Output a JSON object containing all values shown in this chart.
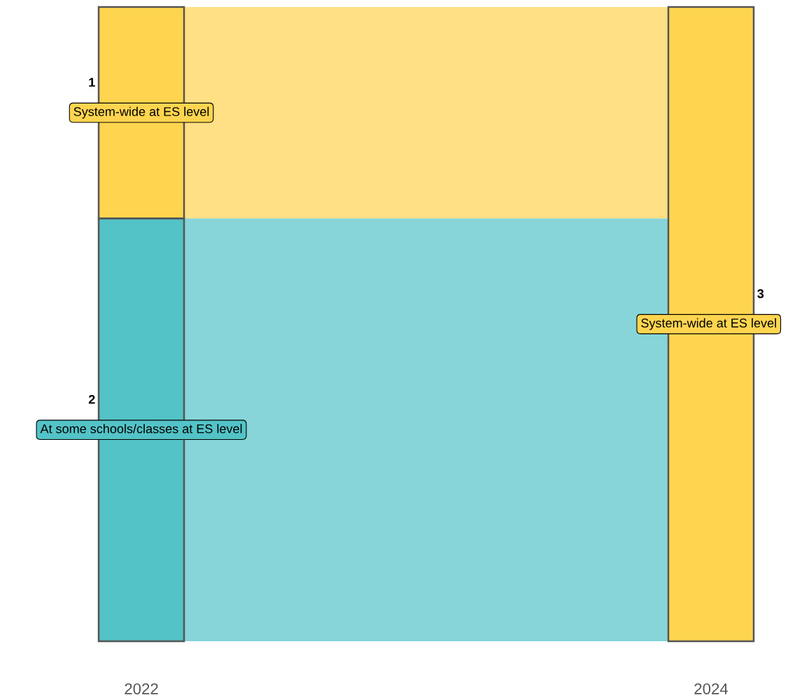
{
  "chart_data": {
    "type": "bar",
    "stacked": true,
    "categories": [
      "2022",
      "2024"
    ],
    "series": [
      {
        "name": "At some schools/classes at ES level",
        "color": "#53c3c7",
        "values": [
          2,
          null
        ]
      },
      {
        "name": "System-wide at ES level",
        "color": "#ffd54f",
        "values": [
          1,
          3
        ]
      }
    ],
    "bands": [
      {
        "axis": "y",
        "from": 0,
        "to": 2,
        "color": "#87d5d8"
      },
      {
        "axis": "y",
        "from": 2,
        "to": 3,
        "color": "#ffe084"
      }
    ],
    "data_labels": true
  }
}
